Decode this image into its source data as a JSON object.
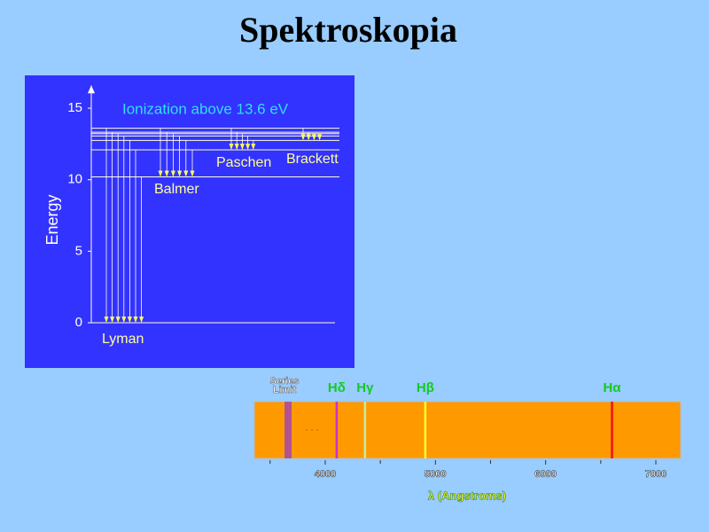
{
  "title": "Spektroskopia",
  "chart_data": [
    {
      "type": "energy-levels",
      "ylabel": "Energy",
      "ylim": [
        0,
        16.6
      ],
      "yticks": [
        0,
        5,
        10,
        15
      ],
      "annotation": "Ionization above 13.6 eV",
      "annotation_color": "#33ddee",
      "levels": [
        0,
        10.2,
        12.09,
        12.75,
        13.06,
        13.22,
        13.32,
        13.6
      ],
      "level_color": "#ffffcc",
      "series": [
        {
          "name": "Lyman",
          "color": "#ffff55",
          "lower": 0,
          "upper": [
            13.6,
            13.32,
            13.22,
            13.06,
            12.75,
            12.09,
            10.2
          ]
        },
        {
          "name": "Balmer",
          "color": "#ffff55",
          "lower": 10.2,
          "upper": [
            13.6,
            13.32,
            13.22,
            13.06,
            12.75,
            12.09
          ]
        },
        {
          "name": "Paschen",
          "color": "#ffff55",
          "lower": 12.09,
          "upper": [
            13.6,
            13.32,
            13.22,
            13.06,
            12.75
          ]
        },
        {
          "name": "Brackett",
          "color": "#ffff55",
          "lower": 12.75,
          "upper": [
            13.6,
            13.32,
            13.22,
            13.06
          ]
        }
      ]
    },
    {
      "type": "spectrum",
      "xlabel": "λ (Angstroms)",
      "xlim": [
        3357,
        7225
      ],
      "xticks": [
        4000,
        5000,
        6000,
        7000
      ],
      "xminor_ticks": [
        3500,
        4500,
        5500,
        6500
      ],
      "background": "#ff9900",
      "limit": {
        "label_lines": [
          "Series",
          "Limit"
        ],
        "values": [
          3639,
          3655,
          3671,
          3687
        ],
        "color": "#a040c0"
      },
      "annotation": "· · ·",
      "series": [
        {
          "name": "Hδ",
          "value": 4104,
          "color": "#cc33cc"
        },
        {
          "name": "Hγ",
          "value": 4361,
          "color": "#bbeeaa"
        },
        {
          "name": "Hβ",
          "value": 4908,
          "color": "#ffff33"
        },
        {
          "name": "Hα",
          "value": 6602,
          "color": "#ee1111"
        }
      ]
    }
  ]
}
